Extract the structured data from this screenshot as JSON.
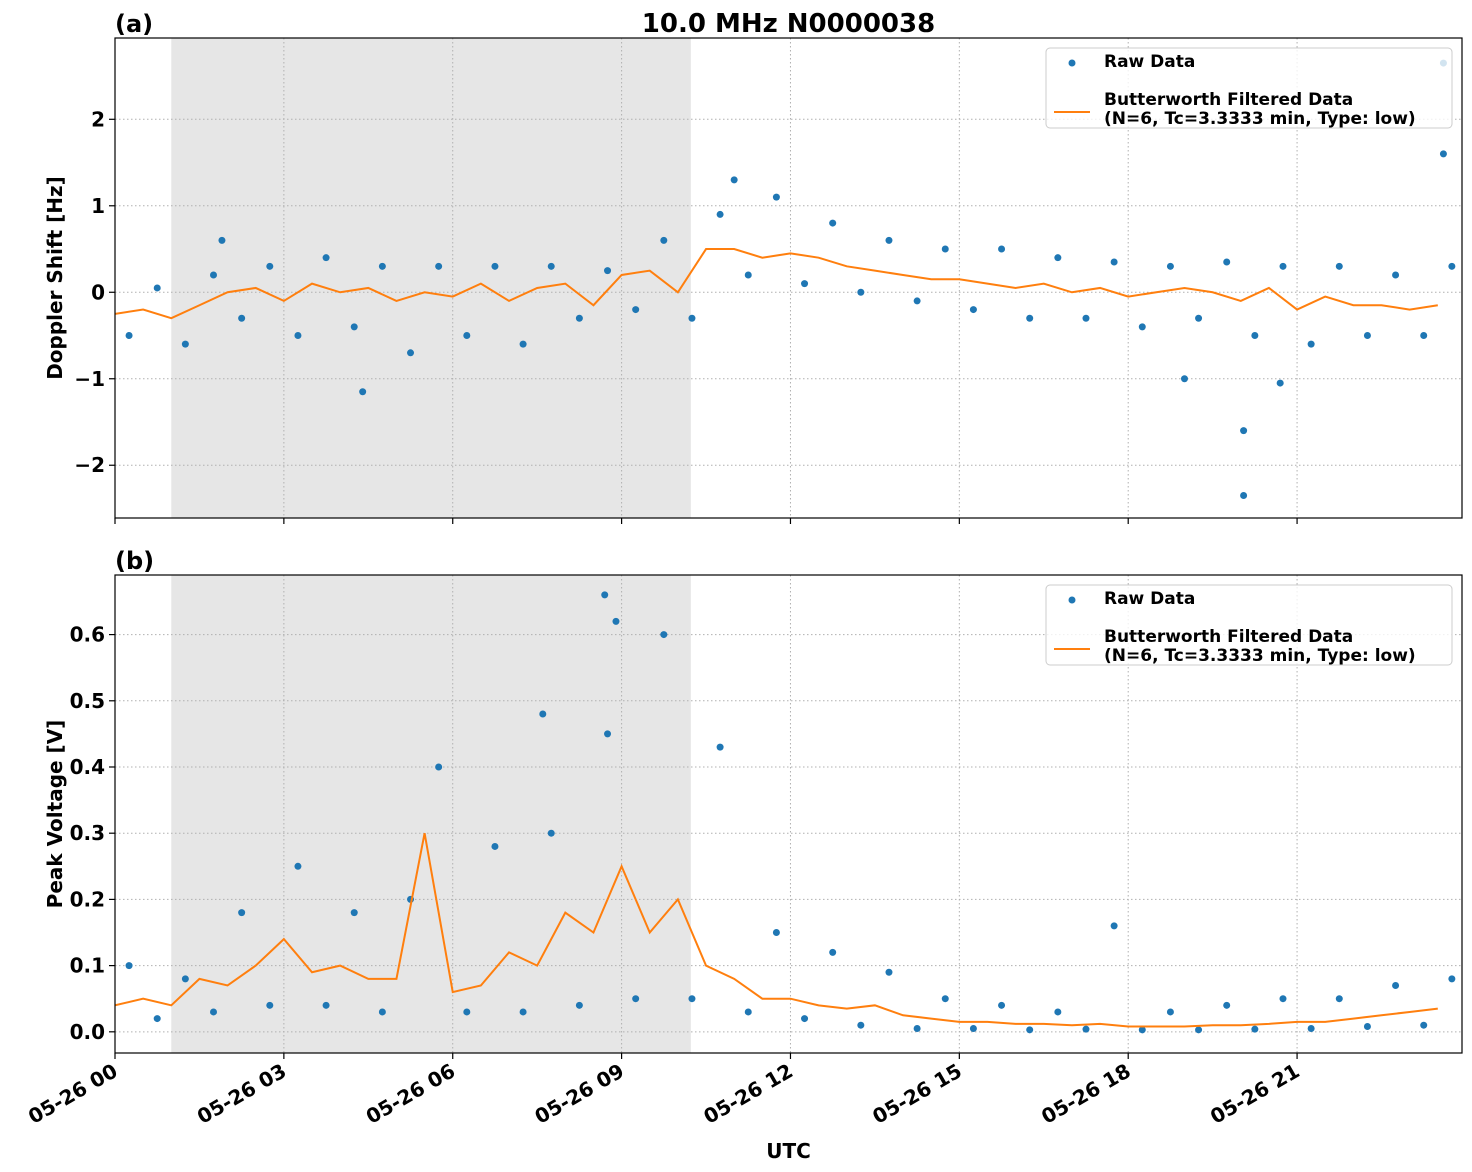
{
  "chart_data": [
    {
      "type": "line",
      "panel_label": "(a)",
      "title": "10.0 MHz N0000038",
      "ylabel": "Doppler Shift [Hz]",
      "xlim": [
        0,
        23.93
      ],
      "xticks": [
        0,
        3,
        6,
        9,
        12,
        15,
        18,
        21
      ],
      "ylim": [
        -2.61,
        2.94
      ],
      "yticks": [
        {
          "value": -2,
          "label": "−2"
        },
        {
          "value": -1,
          "label": "−1"
        },
        0,
        1,
        2
      ],
      "grid": true,
      "shade": [
        1.0,
        10.23
      ],
      "legend": "upper right",
      "series": [
        {
          "name": "Raw Data",
          "color": "#1f77b4",
          "style": "points",
          "x": [
            0.25,
            0.75,
            1.25,
            1.75,
            2.25,
            2.75,
            3.25,
            3.75,
            4.25,
            4.75,
            5.25,
            5.75,
            6.25,
            6.75,
            7.25,
            7.75,
            8.25,
            8.75,
            9.25,
            9.75,
            10.25,
            10.75,
            11.25,
            11.75,
            12.25,
            12.75,
            13.25,
            13.75,
            14.25,
            14.75,
            15.25,
            15.75,
            16.25,
            16.75,
            17.25,
            17.75,
            18.25,
            18.75,
            19.25,
            19.75,
            20.25,
            20.75,
            21.25,
            21.75,
            22.25,
            22.75,
            23.25,
            23.75,
            1.9,
            4.4,
            11.0,
            19.0,
            20.05,
            20.05,
            20.7,
            23.6,
            23.6
          ],
          "values": [
            -0.5,
            0.05,
            -0.6,
            0.2,
            -0.3,
            0.3,
            -0.5,
            0.4,
            -0.4,
            0.3,
            -0.7,
            0.3,
            -0.5,
            0.3,
            -0.6,
            0.3,
            -0.3,
            0.25,
            -0.2,
            0.6,
            -0.3,
            0.9,
            0.2,
            1.1,
            0.1,
            0.8,
            0.0,
            0.6,
            -0.1,
            0.5,
            -0.2,
            0.5,
            -0.3,
            0.4,
            -0.3,
            0.35,
            -0.4,
            0.3,
            -0.3,
            0.35,
            -0.5,
            0.3,
            -0.6,
            0.3,
            -0.5,
            0.2,
            -0.5,
            0.3,
            0.6,
            -1.15,
            1.3,
            -1.0,
            -2.35,
            -1.6,
            -1.05,
            1.6,
            2.65
          ]
        },
        {
          "name": "Butterworth Filtered Data\n(N=6, Tc=3.3333 min, Type: low)",
          "color": "#ff7f0e",
          "style": "line",
          "x": [
            0,
            0.5,
            1,
            1.5,
            2,
            2.5,
            3,
            3.5,
            4,
            4.5,
            5,
            5.5,
            6,
            6.5,
            7,
            7.5,
            8,
            8.5,
            9,
            9.5,
            10,
            10.5,
            11,
            11.5,
            12,
            12.5,
            13,
            13.5,
            14,
            14.5,
            15,
            15.5,
            16,
            16.5,
            17,
            17.5,
            18,
            18.5,
            19,
            19.5,
            20,
            20.5,
            21,
            21.5,
            22,
            22.5,
            23,
            23.5
          ],
          "values": [
            -0.25,
            -0.2,
            -0.3,
            -0.15,
            0.0,
            0.05,
            -0.1,
            0.1,
            0.0,
            0.05,
            -0.1,
            0.0,
            -0.05,
            0.1,
            -0.1,
            0.05,
            0.1,
            -0.15,
            0.2,
            0.25,
            0.0,
            0.5,
            0.5,
            0.4,
            0.45,
            0.4,
            0.3,
            0.25,
            0.2,
            0.15,
            0.15,
            0.1,
            0.05,
            0.1,
            0.0,
            0.05,
            -0.05,
            0.0,
            0.05,
            0.0,
            -0.1,
            0.05,
            -0.2,
            -0.05,
            -0.15,
            -0.15,
            -0.2,
            -0.15
          ]
        }
      ]
    },
    {
      "type": "line",
      "panel_label": "(b)",
      "xlabel": "UTC",
      "ylabel": "Peak Voltage [V]",
      "xlim": [
        0,
        23.93
      ],
      "xticks": [
        {
          "value": 0,
          "label": "05-26 00"
        },
        {
          "value": 3,
          "label": "05-26 03"
        },
        {
          "value": 6,
          "label": "05-26 06"
        },
        {
          "value": 9,
          "label": "05-26 09"
        },
        {
          "value": 12,
          "label": "05-26 12"
        },
        {
          "value": 15,
          "label": "05-26 15"
        },
        {
          "value": 18,
          "label": "05-26 18"
        },
        {
          "value": 21,
          "label": "05-26 21"
        }
      ],
      "ylim": [
        -0.032,
        0.69
      ],
      "yticks": [
        {
          "value": 0,
          "label": "0.0"
        },
        0.1,
        0.2,
        0.3,
        0.4,
        0.5,
        0.6
      ],
      "grid": true,
      "shade": [
        1.0,
        10.23
      ],
      "legend": "upper right",
      "series": [
        {
          "name": "Raw Data",
          "color": "#1f77b4",
          "style": "points",
          "x": [
            0.25,
            0.75,
            1.25,
            1.75,
            2.25,
            2.75,
            3.25,
            3.75,
            4.25,
            4.75,
            5.25,
            5.75,
            6.25,
            6.75,
            7.25,
            7.75,
            8.25,
            8.75,
            9.25,
            9.75,
            10.25,
            10.75,
            11.25,
            11.75,
            12.25,
            12.75,
            13.25,
            13.75,
            14.25,
            14.75,
            15.25,
            15.75,
            16.25,
            16.75,
            17.25,
            17.75,
            18.25,
            18.75,
            19.25,
            19.75,
            20.25,
            20.75,
            21.25,
            21.75,
            22.25,
            22.75,
            23.25,
            23.75,
            8.7,
            8.9,
            7.6
          ],
          "values": [
            0.1,
            0.02,
            0.08,
            0.03,
            0.18,
            0.04,
            0.25,
            0.04,
            0.18,
            0.03,
            0.2,
            0.4,
            0.03,
            0.28,
            0.03,
            0.3,
            0.04,
            0.45,
            0.05,
            0.6,
            0.05,
            0.43,
            0.03,
            0.15,
            0.02,
            0.12,
            0.01,
            0.09,
            0.005,
            0.05,
            0.005,
            0.04,
            0.003,
            0.03,
            0.004,
            0.16,
            0.003,
            0.03,
            0.003,
            0.04,
            0.004,
            0.05,
            0.005,
            0.05,
            0.008,
            0.07,
            0.01,
            0.08,
            0.66,
            0.62,
            0.48
          ]
        },
        {
          "name": "Butterworth Filtered Data\n(N=6, Tc=3.3333 min, Type: low)",
          "color": "#ff7f0e",
          "style": "line",
          "x": [
            0,
            0.5,
            1,
            1.5,
            2,
            2.5,
            3,
            3.5,
            4,
            4.5,
            5,
            5.5,
            6,
            6.5,
            7,
            7.5,
            8,
            8.5,
            9,
            9.5,
            10,
            10.5,
            11,
            11.5,
            12,
            12.5,
            13,
            13.5,
            14,
            14.5,
            15,
            15.5,
            16,
            16.5,
            17,
            17.5,
            18,
            18.5,
            19,
            19.5,
            20,
            20.5,
            21,
            21.5,
            22,
            22.5,
            23,
            23.5
          ],
          "values": [
            0.04,
            0.05,
            0.04,
            0.08,
            0.07,
            0.1,
            0.14,
            0.09,
            0.1,
            0.08,
            0.08,
            0.3,
            0.06,
            0.07,
            0.12,
            0.1,
            0.18,
            0.15,
            0.25,
            0.15,
            0.2,
            0.1,
            0.08,
            0.05,
            0.05,
            0.04,
            0.035,
            0.04,
            0.025,
            0.02,
            0.015,
            0.015,
            0.012,
            0.012,
            0.01,
            0.012,
            0.008,
            0.008,
            0.008,
            0.01,
            0.01,
            0.012,
            0.015,
            0.015,
            0.02,
            0.025,
            0.03,
            0.035
          ]
        }
      ]
    }
  ]
}
